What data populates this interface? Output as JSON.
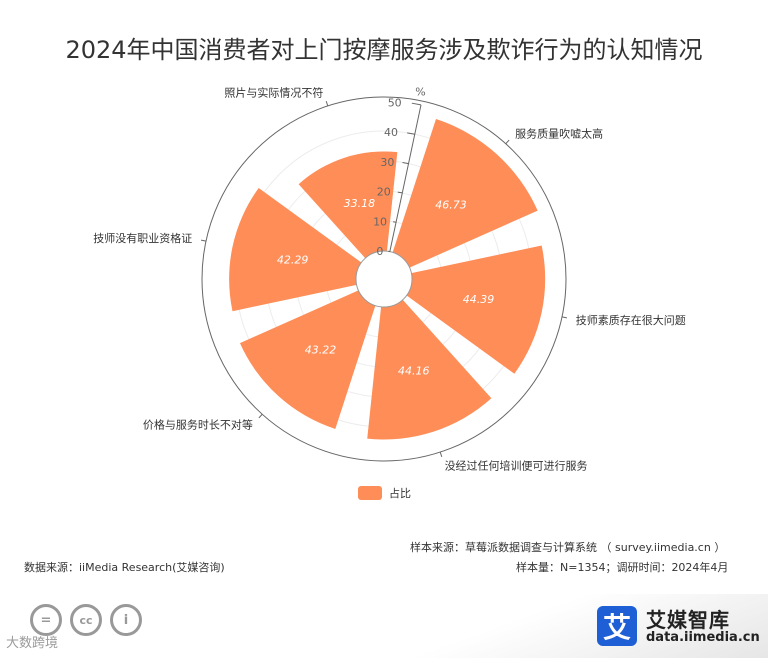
{
  "title": "2024年中国消费者对上门按摩服务涉及欺诈行为的认知情况",
  "chart_data": {
    "type": "bar",
    "polar": true,
    "unit_label": "%",
    "categories": [
      "服务质量吹嘘太高",
      "技师素质存在很大问题",
      "没经过任何培训便可进行服务",
      "价格与服务时长不对等",
      "技师没有职业资格证",
      "照片与实际情况不符"
    ],
    "series": [
      {
        "name": "占比",
        "values": [
          46.73,
          44.39,
          44.16,
          43.22,
          42.29,
          33.18
        ]
      }
    ],
    "radial_ticks": [
      "0",
      "10",
      "20",
      "30",
      "40",
      "50"
    ],
    "ylim": [
      0,
      50
    ],
    "color": "#fe8d57"
  },
  "legend": {
    "label": "占比"
  },
  "sources": {
    "sample_source": "样本来源：草莓派数据调查与计算系统 （ survey.iimedia.cn ）",
    "data_source": "数据来源：iiMedia Research(艾媒咨询)",
    "sample_info": "样本量：N=1354；调研时间：2024年4月"
  },
  "footer": {
    "cc_icons": [
      "=",
      "cc",
      "i"
    ],
    "watermark": "大数跨境",
    "logo_char": "艾",
    "logo_name": "艾媒智库",
    "logo_url": "data.iimedia.cn"
  }
}
